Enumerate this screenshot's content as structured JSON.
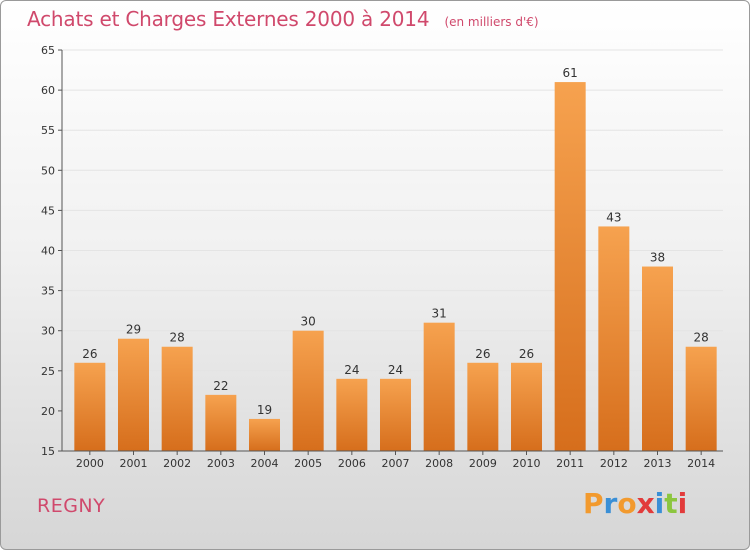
{
  "header": {
    "title": "Achats et Charges Externes 2000 à 2014",
    "unit": "(en milliers d'€)"
  },
  "footer": {
    "commune": "REGNY",
    "brand_letters": [
      "P",
      "r",
      "o",
      "x",
      "i",
      "t",
      "i"
    ],
    "brand_colors": [
      "#f29a2e",
      "#3a8fd6",
      "#f29a2e",
      "#e23b3b",
      "#3a8fd6",
      "#8cc63f",
      "#e23b3b"
    ]
  },
  "colors": {
    "bar_top": "#f6a24f",
    "bar_bottom": "#d66e1c",
    "axis": "#555555",
    "grid": "#e4e4e4",
    "label": "#333333"
  },
  "chart_data": {
    "type": "bar",
    "title": "Achats et Charges Externes 2000 à 2014",
    "subtitle": "(en milliers d'€)",
    "categories": [
      "2000",
      "2001",
      "2002",
      "2003",
      "2004",
      "2005",
      "2006",
      "2007",
      "2008",
      "2009",
      "2010",
      "2011",
      "2012",
      "2013",
      "2014"
    ],
    "values": [
      26,
      29,
      28,
      22,
      19,
      30,
      24,
      24,
      31,
      26,
      26,
      61,
      43,
      38,
      28
    ],
    "ylim": [
      15,
      65
    ],
    "yticks": [
      15,
      20,
      25,
      30,
      35,
      40,
      45,
      50,
      55,
      60,
      65
    ],
    "grid": true,
    "xlabel": "",
    "ylabel": ""
  }
}
